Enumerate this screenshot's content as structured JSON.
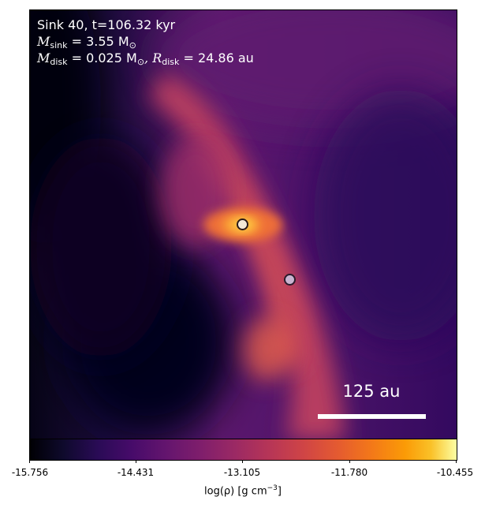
{
  "annotation": {
    "line1": "Sink 40, t=106.32 kyr",
    "m_sink_label": "M",
    "m_sink_sub": "sink",
    "m_sink_value": " = 3.55 M",
    "m_sink_sun": "⊙",
    "m_disk_label": "M",
    "m_disk_sub": "disk",
    "m_disk_value": " = 0.025 M",
    "m_disk_sun": "⊙",
    "r_disk_label": ", R",
    "r_disk_sub": "disk",
    "r_disk_value": " = 24.86 au"
  },
  "scale_bar": {
    "label": "125 au"
  },
  "colorbar": {
    "colormap": "inferno",
    "ticks": [
      "-15.756",
      "-14.431",
      "-13.105",
      "-11.780",
      "-10.455"
    ],
    "label_main": "log(ρ) [g cm",
    "label_sup": "−3",
    "label_end": "]"
  },
  "sinks": [
    {
      "name": "primary-sink",
      "fill": "#f4ead8"
    },
    {
      "name": "secondary-sink",
      "fill": "#c9b4d0"
    }
  ]
}
